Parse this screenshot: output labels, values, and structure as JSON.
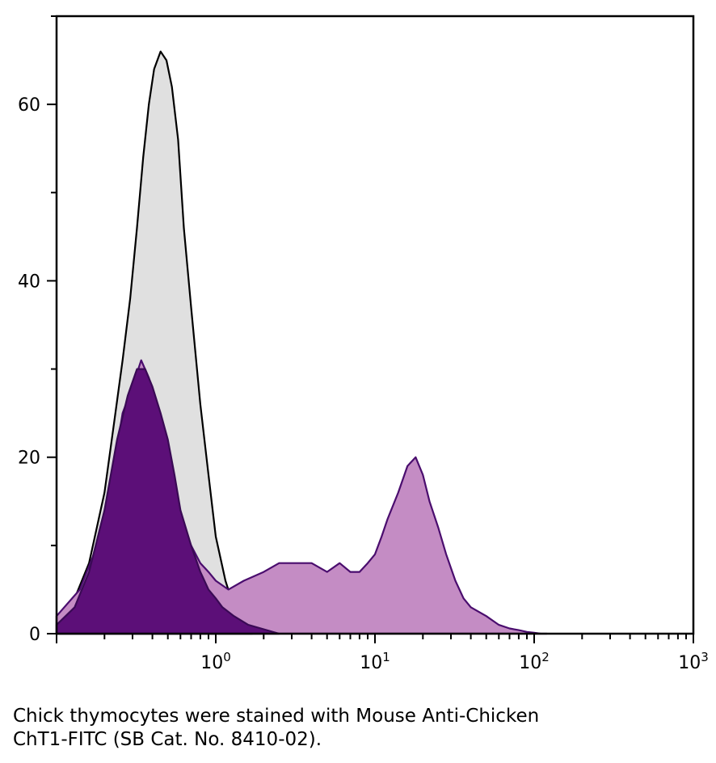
{
  "chart_data": {
    "type": "area",
    "x_scale": "log",
    "xlim": [
      0.1,
      1000
    ],
    "ylim": [
      0,
      70
    ],
    "x_tick_labels": [
      {
        "value": 1,
        "base": "10",
        "exp": "0"
      },
      {
        "value": 10,
        "base": "10",
        "exp": "1"
      },
      {
        "value": 100,
        "base": "10",
        "exp": "2"
      },
      {
        "value": 1000,
        "base": "10",
        "exp": "3"
      }
    ],
    "y_ticks": [
      0,
      20,
      40,
      60
    ],
    "grid": false,
    "series": [
      {
        "fill": "#e0e0e0",
        "stroke": "#000000",
        "x": [
          0.1,
          0.13,
          0.16,
          0.2,
          0.23,
          0.26,
          0.29,
          0.32,
          0.35,
          0.38,
          0.41,
          0.45,
          0.49,
          0.53,
          0.58,
          0.63,
          0.7,
          0.8,
          0.9,
          1.0,
          1.15,
          1.3,
          1.5,
          1.7
        ],
        "y": [
          2,
          4,
          8,
          16,
          24,
          31,
          38,
          46,
          54,
          60,
          64,
          66,
          65,
          62,
          56,
          46,
          37,
          26,
          18,
          11,
          6,
          3,
          1,
          0
        ]
      },
      {
        "fill": "#c48cc4",
        "stroke": "#4a0d6e",
        "x": [
          0.1,
          0.14,
          0.18,
          0.22,
          0.26,
          0.3,
          0.34,
          0.38,
          0.42,
          0.48,
          0.55,
          0.62,
          0.7,
          0.8,
          0.9,
          1.0,
          1.2,
          1.5,
          2,
          2.5,
          3,
          4,
          5,
          6,
          7,
          8,
          9,
          10,
          11,
          12,
          14,
          16,
          18,
          20,
          22,
          25,
          28,
          32,
          36,
          40,
          50,
          60,
          70,
          80,
          90,
          100,
          110,
          120
        ],
        "y": [
          2,
          5,
          10,
          17,
          25,
          28,
          31,
          29,
          26,
          20,
          16,
          12,
          10,
          8,
          7,
          6,
          5,
          6,
          7,
          8,
          8,
          8,
          7,
          8,
          7,
          7,
          8,
          9,
          11,
          13,
          16,
          19,
          20,
          18,
          15,
          12,
          9,
          6,
          4,
          3,
          2,
          1,
          0.6,
          0.4,
          0.2,
          0.1,
          0,
          0
        ]
      },
      {
        "fill": "#5c0f78",
        "stroke": "#3a0a55",
        "x": [
          0.1,
          0.13,
          0.16,
          0.2,
          0.24,
          0.28,
          0.32,
          0.36,
          0.4,
          0.45,
          0.5,
          0.55,
          0.6,
          0.7,
          0.8,
          0.9,
          1.0,
          1.1,
          1.3,
          1.6,
          2.0,
          2.5
        ],
        "y": [
          1,
          3,
          7,
          14,
          22,
          27,
          30,
          30,
          28,
          25,
          22,
          18,
          14,
          10,
          7,
          5,
          4,
          3,
          2,
          1,
          0.5,
          0
        ]
      }
    ]
  },
  "caption": {
    "line1": "Chick thymocytes were stained with Mouse Anti-Chicken",
    "line2": "ChT1-FITC (SB Cat. No. 8410-02)."
  }
}
